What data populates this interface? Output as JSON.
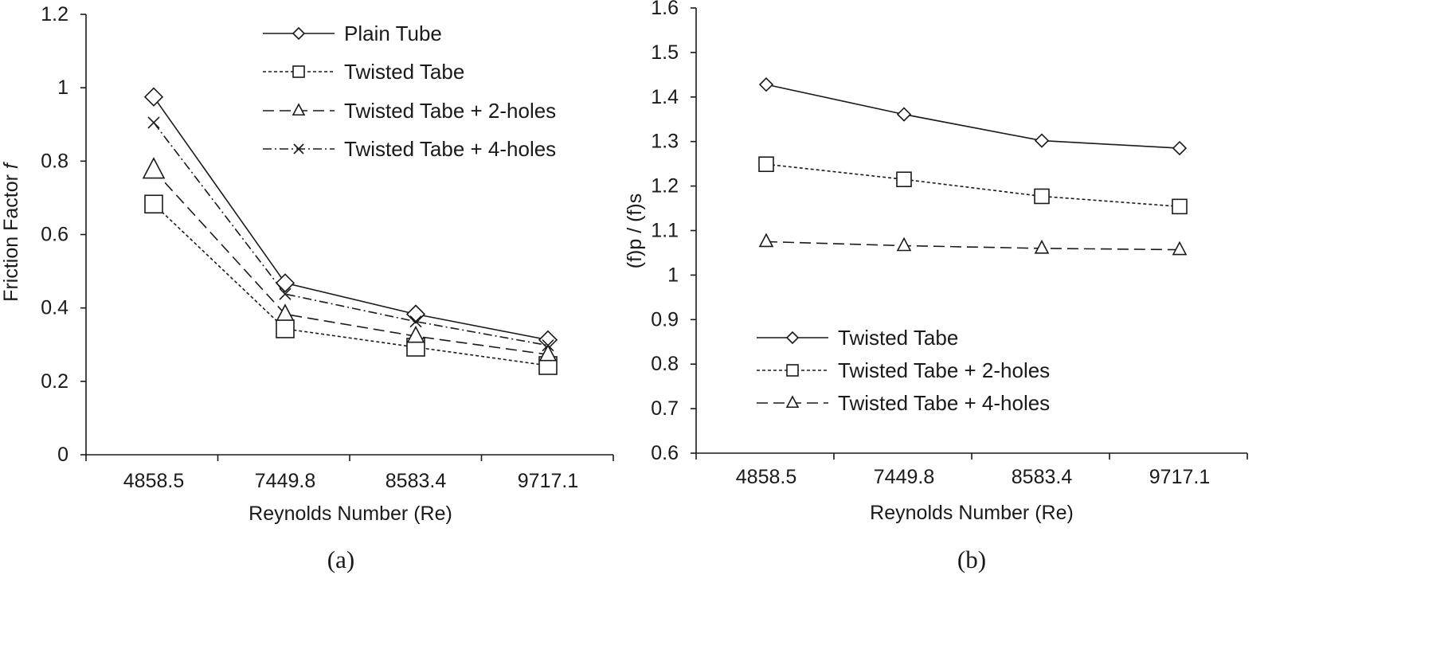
{
  "chart_data": [
    {
      "type": "line",
      "caption": "(a)",
      "xlabel": "Reynolds Number (Re)",
      "ylabel": "Friction Factor ",
      "ylabel_symbol": "f",
      "categories": [
        "4858.5",
        "7449.8",
        "8583.4",
        "9717.1"
      ],
      "ylim": [
        0,
        1.2
      ],
      "yticks": [
        "0",
        "0.2",
        "0.4",
        "0.6",
        "0.8",
        "1",
        "1.2"
      ],
      "ytick_values": [
        0,
        0.2,
        0.4,
        0.6,
        0.8,
        1.0,
        1.2
      ],
      "legend_position": "top-right",
      "series": [
        {
          "name": "Plain Tube",
          "marker": "diamond",
          "dash": "solid",
          "values": [
            0.975,
            0.468,
            0.383,
            0.313
          ]
        },
        {
          "name": "Twisted Tabe",
          "marker": "square",
          "dash": "dotted",
          "values": [
            0.683,
            0.343,
            0.293,
            0.243
          ]
        },
        {
          "name": "Twisted Tabe + 2-holes",
          "marker": "triangle",
          "dash": "dashed",
          "values": [
            0.775,
            0.383,
            0.323,
            0.273
          ]
        },
        {
          "name": "Twisted Tabe + 4-holes",
          "marker": "x",
          "dash": "dashdot",
          "values": [
            0.905,
            0.438,
            0.363,
            0.298
          ]
        }
      ]
    },
    {
      "type": "line",
      "caption": "(b)",
      "xlabel": "Reynolds Number (Re)",
      "ylabel": "(f)p / (f)s",
      "categories": [
        "4858.5",
        "7449.8",
        "8583.4",
        "9717.1"
      ],
      "ylim": [
        0.6,
        1.6
      ],
      "yticks": [
        "0.6",
        "0.7",
        "0.8",
        "0.9",
        "1",
        "1.1",
        "1.2",
        "1.3",
        "1.4",
        "1.5",
        "1.6"
      ],
      "ytick_values": [
        0.6,
        0.7,
        0.8,
        0.9,
        1.0,
        1.1,
        1.2,
        1.3,
        1.4,
        1.5,
        1.6
      ],
      "legend_position": "bottom-left",
      "series": [
        {
          "name": "Twisted Tabe",
          "marker": "diamond",
          "dash": "solid",
          "values": [
            1.428,
            1.361,
            1.302,
            1.285
          ]
        },
        {
          "name": "Twisted Tabe + 2-holes",
          "marker": "square",
          "dash": "dotted",
          "values": [
            1.249,
            1.215,
            1.177,
            1.154
          ]
        },
        {
          "name": "Twisted Tabe + 4-holes",
          "marker": "triangle",
          "dash": "dashed",
          "values": [
            1.075,
            1.066,
            1.06,
            1.057
          ]
        }
      ]
    }
  ]
}
